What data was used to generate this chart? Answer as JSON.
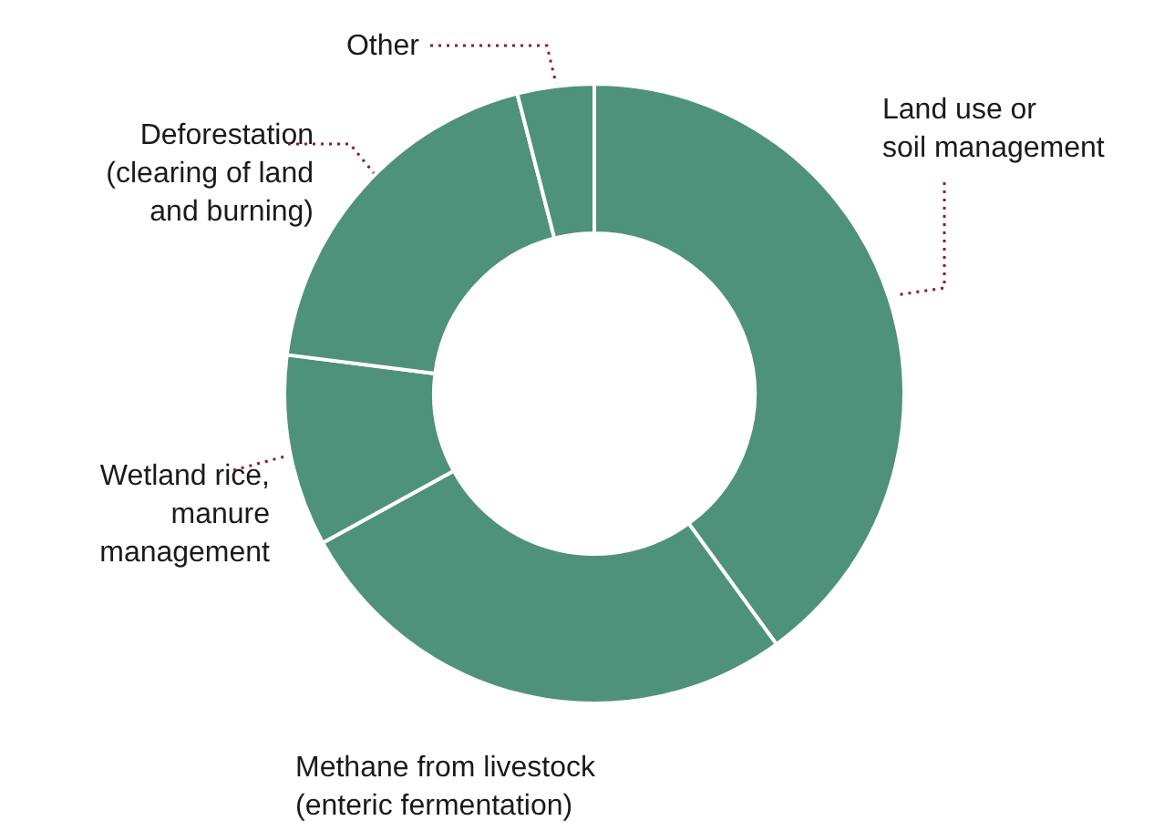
{
  "chart_data": {
    "type": "donut",
    "categories": [
      "Land use or\nsoil management",
      "Methane from livestock\n(enteric fermentation)",
      "Wetland rice,\nmanure\nmanagement",
      "Deforestation\n(clearing of land\nand burning)",
      "Other"
    ],
    "values": [
      40,
      27,
      10,
      19,
      4
    ],
    "colors": [
      "#4f927c",
      "#4f927c",
      "#4f927c",
      "#4f927c",
      "#4f927c"
    ],
    "legend": false
  }
}
